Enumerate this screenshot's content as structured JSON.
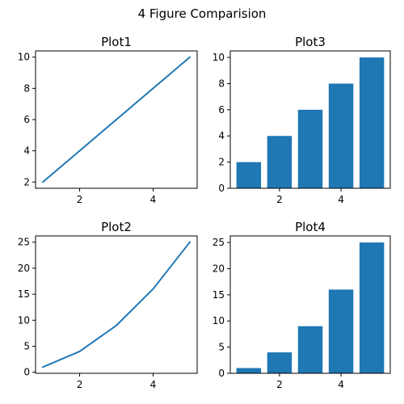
{
  "figure": {
    "suptitle": "4 Figure Comparision"
  },
  "style": {
    "series_color": "#1f77b4",
    "axis_color": "#000000"
  },
  "chart_data": [
    {
      "id": "plot1",
      "type": "line",
      "title": "Plot1",
      "x": [
        1,
        2,
        3,
        4,
        5
      ],
      "y": [
        2,
        4,
        6,
        8,
        10
      ],
      "xlim": [
        0.8,
        5.2
      ],
      "ylim": [
        1.6,
        10.4
      ],
      "xticks": [
        2,
        4
      ],
      "yticks": [
        2,
        4,
        6,
        8,
        10
      ],
      "xlabel": "",
      "ylabel": "",
      "grid": false
    },
    {
      "id": "plot3",
      "type": "bar",
      "title": "Plot3",
      "x": [
        1,
        2,
        3,
        4,
        5
      ],
      "values": [
        2,
        4,
        6,
        8,
        10
      ],
      "bar_width": 0.8,
      "xlim": [
        0.4,
        5.6
      ],
      "ylim": [
        0,
        10.5
      ],
      "xticks": [
        2,
        4
      ],
      "yticks": [
        0,
        2,
        4,
        6,
        8,
        10
      ],
      "xlabel": "",
      "ylabel": "",
      "grid": false
    },
    {
      "id": "plot2",
      "type": "line",
      "title": "Plot2",
      "x": [
        1,
        2,
        3,
        4,
        5
      ],
      "y": [
        1,
        4,
        9,
        16,
        25
      ],
      "xlim": [
        0.8,
        5.2
      ],
      "ylim": [
        -0.2,
        26.2
      ],
      "xticks": [
        2,
        4
      ],
      "yticks": [
        0,
        5,
        10,
        15,
        20,
        25
      ],
      "xlabel": "",
      "ylabel": "",
      "grid": false
    },
    {
      "id": "plot4",
      "type": "bar",
      "title": "Plot4",
      "x": [
        1,
        2,
        3,
        4,
        5
      ],
      "values": [
        1,
        4,
        9,
        16,
        25
      ],
      "bar_width": 0.8,
      "xlim": [
        0.4,
        5.6
      ],
      "ylim": [
        0,
        26.25
      ],
      "xticks": [
        2,
        4
      ],
      "yticks": [
        0,
        5,
        10,
        15,
        20,
        25
      ],
      "xlabel": "",
      "ylabel": "",
      "grid": false
    }
  ]
}
